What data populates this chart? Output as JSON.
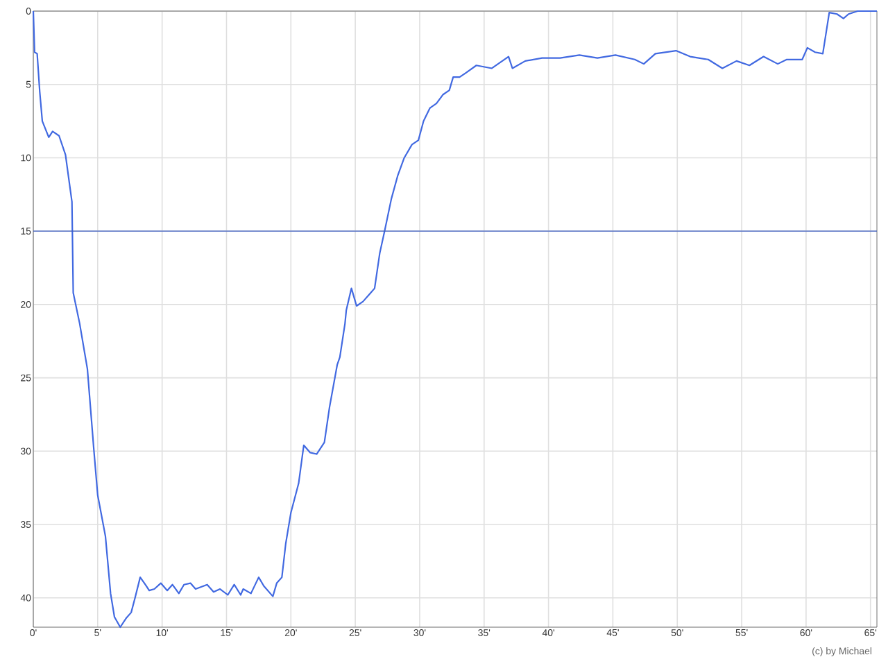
{
  "chart_data": {
    "type": "line",
    "x": [
      0,
      0.1,
      0.3,
      0.5,
      0.7,
      1.2,
      1.5,
      2.0,
      2.5,
      3.0,
      3.1,
      3.6,
      4.2,
      4.7,
      5.0,
      5.6,
      6.0,
      6.3,
      6.75,
      7.2,
      7.6,
      7.9,
      8.3,
      8.7,
      9.0,
      9.4,
      9.9,
      10.4,
      10.8,
      11.3,
      11.7,
      12.2,
      12.6,
      13.5,
      14.0,
      14.5,
      15.1,
      15.6,
      16.1,
      16.3,
      16.9,
      17.5,
      17.9,
      18.6,
      18.9,
      19.3,
      19.6,
      20.0,
      20.6,
      21.0,
      21.5,
      22.0,
      22.6,
      23.0,
      23.6,
      23.8,
      24.2,
      24.3,
      24.7,
      25.1,
      25.6,
      26.2,
      26.5,
      26.9,
      27.3,
      27.8,
      28.3,
      28.8,
      29.4,
      29.9,
      30.3,
      30.8,
      31.3,
      31.8,
      32.3,
      32.6,
      33.1,
      33.6,
      34.4,
      35.6,
      36.9,
      37.2,
      38.2,
      39.5,
      40.9,
      42.4,
      43.8,
      45.2,
      46.7,
      47.4,
      48.3,
      49.9,
      51.0,
      52.4,
      53.5,
      54.6,
      55.6,
      56.7,
      57.8,
      58.5,
      59.7,
      60.1,
      60.7,
      61.3,
      61.8,
      62.4,
      62.9,
      63.3,
      64.0,
      65.5
    ],
    "series": [
      {
        "color": "#4169e1",
        "values": [
          0,
          2.8,
          2.9,
          5.5,
          7.5,
          8.6,
          8.2,
          8.5,
          9.8,
          13.0,
          19.2,
          21.3,
          24.4,
          29.9,
          33.0,
          35.8,
          39.7,
          41.3,
          42.0,
          41.4,
          41.0,
          40.0,
          38.6,
          39.1,
          39.5,
          39.4,
          39.0,
          39.5,
          39.1,
          39.7,
          39.1,
          39.0,
          39.4,
          39.1,
          39.6,
          39.4,
          39.8,
          39.1,
          39.8,
          39.4,
          39.7,
          38.6,
          39.2,
          39.9,
          39.0,
          38.6,
          36.3,
          34.2,
          32.2,
          29.6,
          30.1,
          30.2,
          29.4,
          27.0,
          24.1,
          23.6,
          21.3,
          20.4,
          18.9,
          20.1,
          19.8,
          19.2,
          18.9,
          16.5,
          14.9,
          12.8,
          11.2,
          10.0,
          9.1,
          8.8,
          7.5,
          6.6,
          6.3,
          5.7,
          5.4,
          4.5,
          4.5,
          4.2,
          3.7,
          3.9,
          3.1,
          3.9,
          3.4,
          3.2,
          3.2,
          3.0,
          3.2,
          3.0,
          3.3,
          3.6,
          2.9,
          2.7,
          3.1,
          3.3,
          3.9,
          3.4,
          3.7,
          3.1,
          3.6,
          3.3,
          3.3,
          2.5,
          2.8,
          2.9,
          0.1,
          0.2,
          0.5,
          0.2,
          0,
          0
        ]
      }
    ],
    "xlim": [
      0,
      65.5
    ],
    "xticks": [
      {
        "value": 0,
        "label": "0'"
      },
      {
        "value": 5,
        "label": "5'"
      },
      {
        "value": 10,
        "label": "10'"
      },
      {
        "value": 15,
        "label": "15'"
      },
      {
        "value": 20,
        "label": "20'"
      },
      {
        "value": 25,
        "label": "25'"
      },
      {
        "value": 30,
        "label": "30'"
      },
      {
        "value": 35,
        "label": "35'"
      },
      {
        "value": 40,
        "label": "40'"
      },
      {
        "value": 45,
        "label": "45'"
      },
      {
        "value": 50,
        "label": "50'"
      },
      {
        "value": 55,
        "label": "55'"
      },
      {
        "value": 60,
        "label": "60'"
      },
      {
        "value": 65,
        "label": "65'"
      }
    ],
    "ylim": [
      42,
      0
    ],
    "yticks": [
      0,
      5,
      10,
      15,
      20,
      25,
      30,
      35,
      40
    ],
    "ref_lines": [
      {
        "axis": "y",
        "value": 15,
        "color": "#3a5bc0"
      }
    ],
    "annotations": [
      "(c) by Michael"
    ],
    "grid": true,
    "marker": "none",
    "line_style": "solid"
  }
}
